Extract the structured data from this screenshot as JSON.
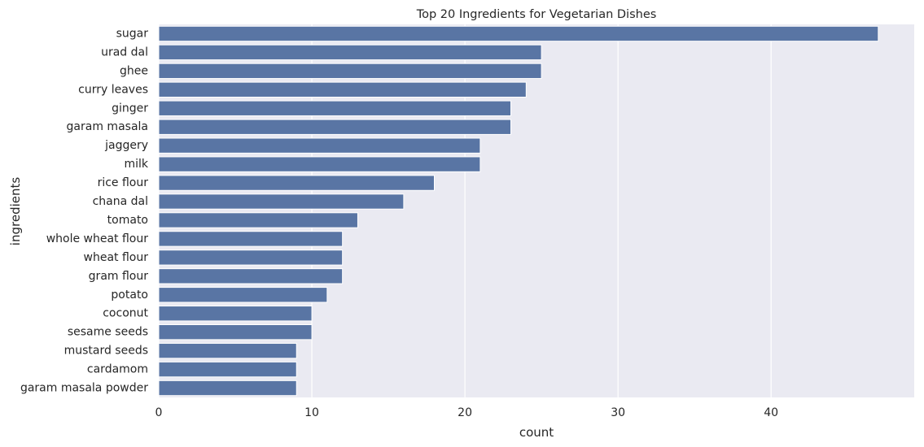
{
  "chart_data": {
    "type": "bar",
    "orientation": "horizontal",
    "title": "Top 20 Ingredients for Vegetarian Dishes",
    "xlabel": "count",
    "ylabel": "ingredients",
    "categories": [
      "sugar",
      "urad dal",
      "ghee",
      "curry leaves",
      "ginger",
      "garam masala",
      "jaggery",
      "milk",
      "rice flour",
      "chana dal",
      "tomato",
      "whole wheat flour",
      "wheat flour",
      "gram flour",
      "potato",
      "coconut",
      "sesame seeds",
      "mustard seeds",
      "cardamom",
      "garam masala powder"
    ],
    "values": [
      47,
      25,
      25,
      24,
      23,
      23,
      21,
      21,
      18,
      16,
      13,
      12,
      12,
      12,
      11,
      10,
      10,
      9,
      9,
      9
    ],
    "xlim": [
      0,
      49.35
    ],
    "xticks": [
      0,
      10,
      20,
      30,
      40
    ],
    "grid": true,
    "colors": {
      "bar": "#5975a4",
      "bar_edge": "#ffffff",
      "plot_background": "#eaeaf2",
      "grid": "#ffffff",
      "text": "#262626"
    }
  }
}
